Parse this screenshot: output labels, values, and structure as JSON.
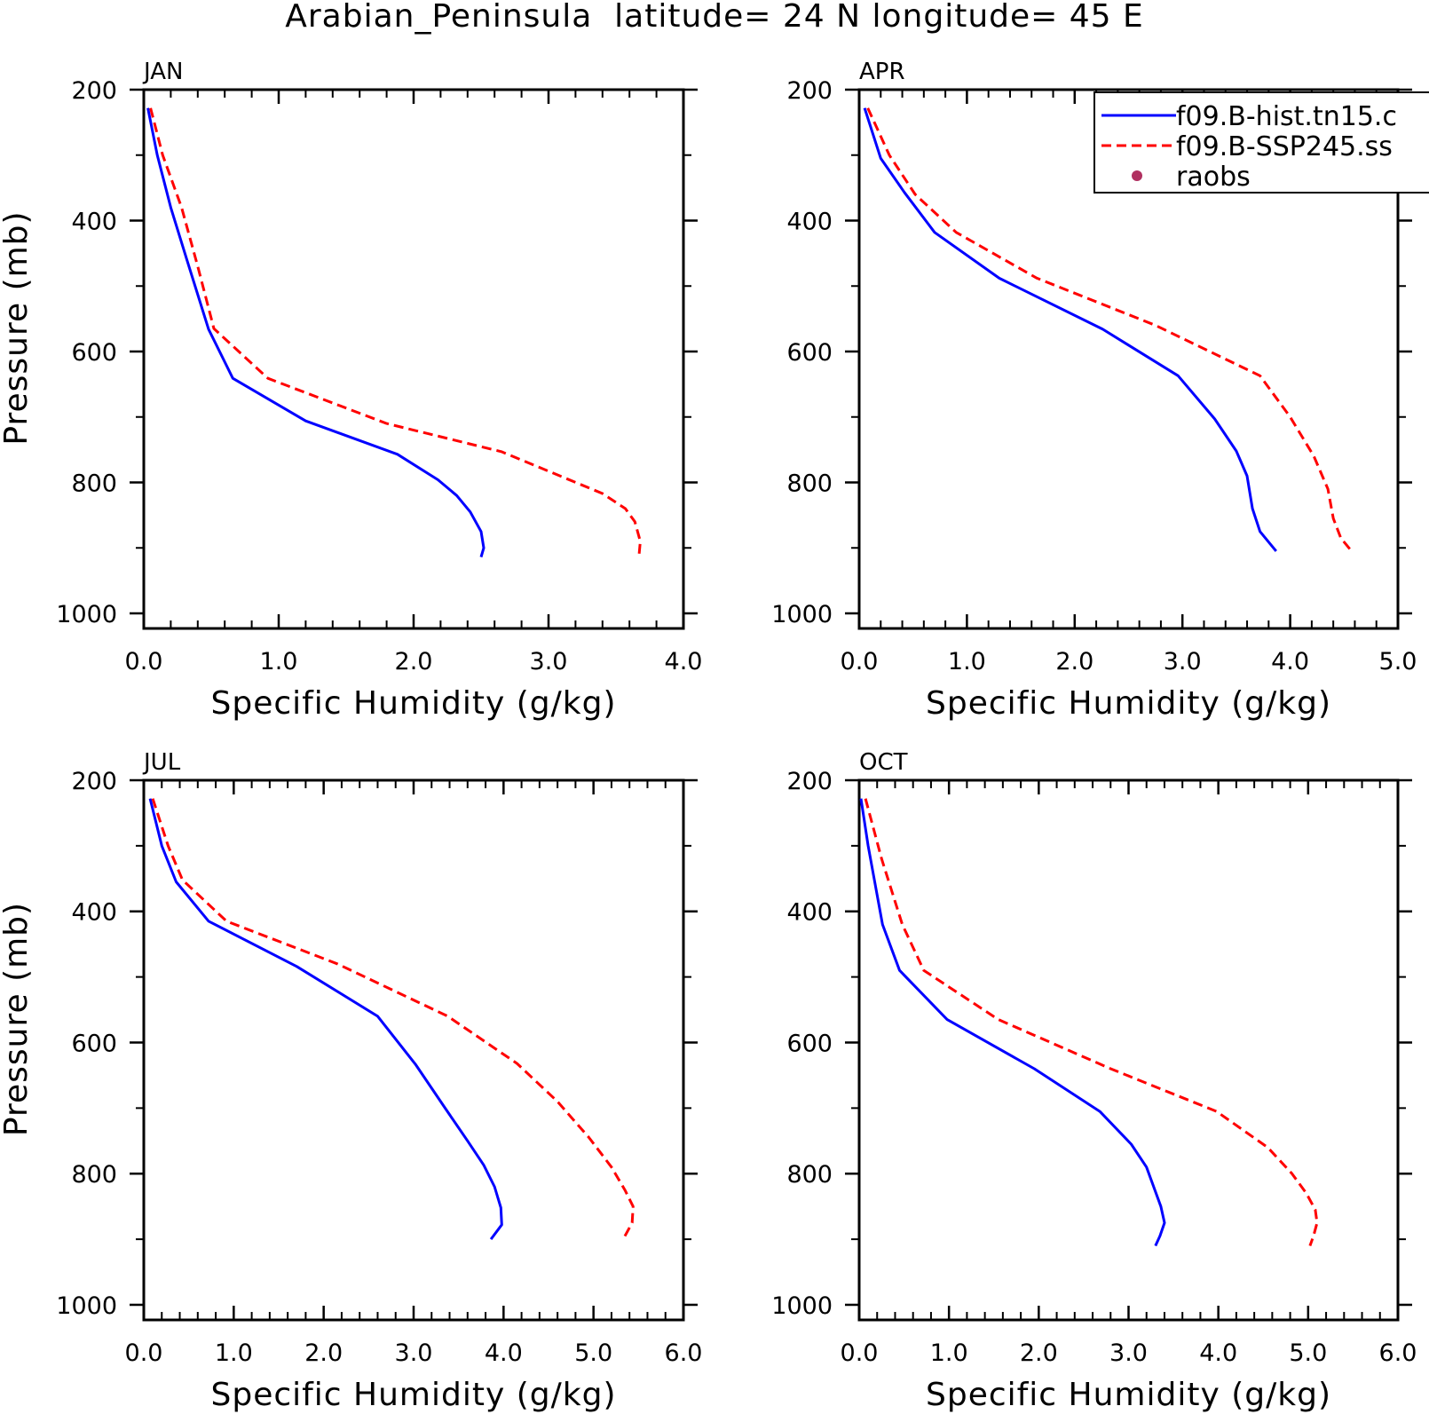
{
  "figure": {
    "title": "Arabian_Peninsula  latitude= 24 N longitude= 45 E"
  },
  "legend": {
    "entries": [
      {
        "label": "f09.B-hist.tn15.c",
        "color": "#0000ff",
        "style": "solid"
      },
      {
        "label": "f09.B-SSP245.ss",
        "color": "#ff0000",
        "style": "dashed"
      },
      {
        "label": "raobs",
        "color": "#b03060",
        "style": "marker"
      }
    ],
    "placement": "top-right of APR panel"
  },
  "chart_data": [
    {
      "type": "line",
      "panel": "JAN",
      "xlabel": "Specific Humidity (g/kg)",
      "ylabel": "Pressure (mb)",
      "xlim": [
        0,
        4
      ],
      "ylim": [
        1000,
        200
      ],
      "xticks": [
        "0.0",
        "1.0",
        "2.0",
        "3.0",
        "4.0"
      ],
      "yticks": [
        "200",
        "400",
        "600",
        "800",
        "1000"
      ],
      "series": [
        {
          "name": "f09.B-hist.tn15.c",
          "color": "#0000ff",
          "dash": "solid",
          "x": [
            0.03,
            0.1,
            0.2,
            0.32,
            0.48,
            0.66,
            1.2,
            1.88,
            2.18,
            2.32,
            2.42,
            2.5,
            2.52,
            2.5
          ],
          "y": [
            228,
            300,
            380,
            460,
            566,
            641,
            706,
            757,
            796,
            820,
            845,
            875,
            900,
            914
          ]
        },
        {
          "name": "f09.B-SSP245.ss",
          "color": "#ff0000",
          "dash": "dashed",
          "x": [
            0.05,
            0.14,
            0.28,
            0.4,
            0.52,
            0.92,
            1.8,
            2.65,
            3.4,
            3.57,
            3.64,
            3.68,
            3.67
          ],
          "y": [
            228,
            300,
            380,
            470,
            565,
            641,
            710,
            753,
            817,
            840,
            860,
            890,
            914
          ]
        }
      ]
    },
    {
      "type": "line",
      "panel": "APR",
      "xlabel": "Specific Humidity (g/kg)",
      "ylabel": "",
      "xlim": [
        0,
        5
      ],
      "ylim": [
        1000,
        200
      ],
      "xticks": [
        "0.0",
        "1.0",
        "2.0",
        "3.0",
        "4.0",
        "5.0"
      ],
      "yticks": [
        "200",
        "400",
        "600",
        "800",
        "1000"
      ],
      "series": [
        {
          "name": "f09.B-hist.tn15.c",
          "color": "#0000ff",
          "dash": "solid",
          "x": [
            0.05,
            0.2,
            0.42,
            0.7,
            1.3,
            2.26,
            2.96,
            3.3,
            3.5,
            3.6,
            3.65,
            3.72,
            3.87
          ],
          "y": [
            228,
            305,
            357,
            418,
            488,
            566,
            637,
            703,
            752,
            790,
            840,
            875,
            905
          ]
        },
        {
          "name": "f09.B-SSP245.ss",
          "color": "#ff0000",
          "dash": "dashed",
          "x": [
            0.08,
            0.28,
            0.52,
            0.9,
            1.65,
            2.75,
            3.72,
            4.0,
            4.22,
            4.35,
            4.4,
            4.47,
            4.57
          ],
          "y": [
            228,
            300,
            360,
            418,
            488,
            560,
            637,
            700,
            760,
            810,
            855,
            885,
            905
          ]
        }
      ]
    },
    {
      "type": "line",
      "panel": "JUL",
      "xlabel": "Specific Humidity (g/kg)",
      "ylabel": "Pressure (mb)",
      "xlim": [
        0,
        6
      ],
      "ylim": [
        1000,
        200
      ],
      "xticks": [
        "0.0",
        "1.0",
        "2.0",
        "3.0",
        "4.0",
        "5.0",
        "6.0"
      ],
      "yticks": [
        "200",
        "400",
        "600",
        "800",
        "1000"
      ],
      "series": [
        {
          "name": "f09.B-hist.tn15.c",
          "color": "#0000ff",
          "dash": "solid",
          "x": [
            0.07,
            0.2,
            0.36,
            0.72,
            1.7,
            2.6,
            3.02,
            3.35,
            3.6,
            3.78,
            3.9,
            3.97,
            3.98,
            3.86
          ],
          "y": [
            228,
            300,
            355,
            415,
            484,
            560,
            633,
            700,
            750,
            787,
            820,
            852,
            878,
            900
          ]
        },
        {
          "name": "f09.B-SSP245.ss",
          "color": "#ff0000",
          "dash": "dashed",
          "x": [
            0.1,
            0.27,
            0.43,
            0.92,
            2.15,
            3.38,
            4.15,
            4.6,
            4.95,
            5.2,
            5.35,
            5.44,
            5.43,
            5.33
          ],
          "y": [
            228,
            300,
            352,
            415,
            480,
            560,
            632,
            690,
            745,
            790,
            825,
            850,
            875,
            900
          ]
        }
      ]
    },
    {
      "type": "line",
      "panel": "OCT",
      "xlabel": "Specific Humidity (g/kg)",
      "ylabel": "",
      "xlim": [
        0,
        6
      ],
      "ylim": [
        1000,
        200
      ],
      "xticks": [
        "0.0",
        "1.0",
        "2.0",
        "3.0",
        "4.0",
        "5.0",
        "6.0"
      ],
      "yticks": [
        "200",
        "400",
        "600",
        "800",
        "1000"
      ],
      "series": [
        {
          "name": "f09.B-hist.tn15.c",
          "color": "#0000ff",
          "dash": "solid",
          "x": [
            0.02,
            0.1,
            0.26,
            0.45,
            0.98,
            1.95,
            2.68,
            3.03,
            3.2,
            3.28,
            3.36,
            3.4,
            3.35,
            3.3
          ],
          "y": [
            228,
            300,
            420,
            490,
            565,
            640,
            705,
            755,
            790,
            820,
            850,
            875,
            895,
            910
          ]
        },
        {
          "name": "f09.B-SSP245.ss",
          "color": "#ff0000",
          "dash": "dashed",
          "x": [
            0.07,
            0.25,
            0.48,
            0.72,
            1.55,
            2.8,
            3.98,
            4.55,
            4.82,
            4.98,
            5.08,
            5.1,
            5.06,
            5.02
          ],
          "y": [
            228,
            320,
            420,
            490,
            565,
            640,
            705,
            760,
            800,
            830,
            855,
            875,
            895,
            910
          ]
        }
      ]
    }
  ]
}
